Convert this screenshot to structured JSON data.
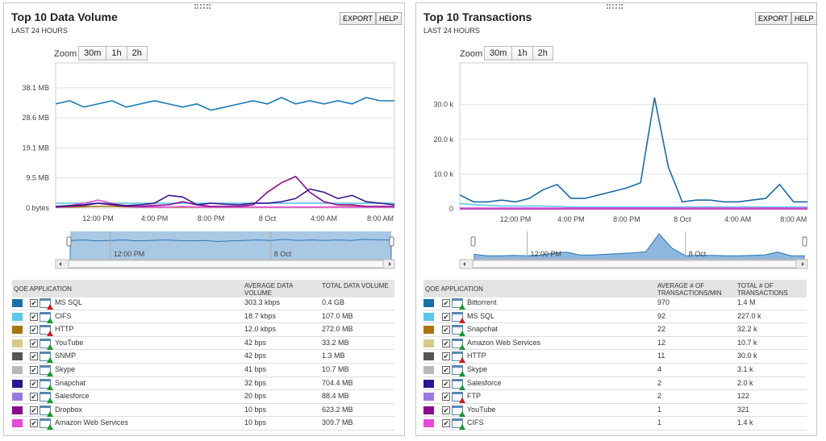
{
  "panels": [
    {
      "title": "Top 10 Data Volume",
      "subtitle": "LAST 24 HOURS",
      "export_label": "EXPORT",
      "help_label": "HELP",
      "zoom": {
        "label": "Zoom",
        "options": [
          "30m",
          "1h",
          "2h"
        ]
      },
      "table": {
        "headers": [
          "QOE APPLICATION",
          "AVERAGE DATA VOLUME",
          "TOTAL DATA VOLUME"
        ],
        "rows": [
          {
            "name": "MS SQL",
            "color": "#1a6fa8",
            "alert": true,
            "avg": "303.3 kbps",
            "total": "0.4 GB"
          },
          {
            "name": "CIFS",
            "color": "#5bc8e8",
            "alert": false,
            "avg": "18.7 kbps",
            "total": "107.0 MB"
          },
          {
            "name": "HTTP",
            "color": "#a8760e",
            "alert": true,
            "avg": "12.0 kbps",
            "total": "272.0 MB"
          },
          {
            "name": "YouTube",
            "color": "#d8c88a",
            "alert": false,
            "avg": "42 bps",
            "total": "33.2 MB"
          },
          {
            "name": "SNMP",
            "color": "#555555",
            "alert": false,
            "avg": "42 bps",
            "total": "1.3 MB"
          },
          {
            "name": "Skype",
            "color": "#b8b8b8",
            "alert": false,
            "avg": "41 bps",
            "total": "10.7 MB"
          },
          {
            "name": "Snapchat",
            "color": "#2e1490",
            "alert": false,
            "avg": "32 bps",
            "total": "704.4 MB"
          },
          {
            "name": "Salesforce",
            "color": "#9a78e0",
            "alert": false,
            "avg": "20 bps",
            "total": "88.4 MB"
          },
          {
            "name": "Dropbox",
            "color": "#8c0a8c",
            "alert": false,
            "avg": "10 bps",
            "total": "623.2 MB"
          },
          {
            "name": "Amazon Web Services",
            "color": "#e64ad8",
            "alert": false,
            "avg": "10 bps",
            "total": "309.7 MB"
          }
        ]
      }
    },
    {
      "title": "Top 10 Transactions",
      "subtitle": "LAST 24 HOURS",
      "export_label": "EXPORT",
      "help_label": "HELP",
      "zoom": {
        "label": "Zoom",
        "options": [
          "30m",
          "1h",
          "2h"
        ]
      },
      "table": {
        "headers": [
          "QOE APPLICATION",
          "AVERAGE # OF TRANSACTIONS/MIN",
          "TOTAL # OF TRANSACTIONS"
        ],
        "rows": [
          {
            "name": "Bittorrent",
            "color": "#1a6fa8",
            "alert": false,
            "avg": "970",
            "total": "1.4 M"
          },
          {
            "name": "MS SQL",
            "color": "#5bc8e8",
            "alert": true,
            "avg": "92",
            "total": "227.0 k"
          },
          {
            "name": "Snapchat",
            "color": "#a8760e",
            "alert": false,
            "avg": "22",
            "total": "32.2 k"
          },
          {
            "name": "Amazon Web Services",
            "color": "#d8c88a",
            "alert": false,
            "avg": "12",
            "total": "10.7 k"
          },
          {
            "name": "HTTP",
            "color": "#555555",
            "alert": true,
            "avg": "11",
            "total": "30.0 k"
          },
          {
            "name": "Skype",
            "color": "#b8b8b8",
            "alert": false,
            "avg": "4",
            "total": "3.1 k"
          },
          {
            "name": "Salesforce",
            "color": "#2e1490",
            "alert": false,
            "avg": "2",
            "total": "2.0 k"
          },
          {
            "name": "FTP",
            "color": "#9a78e0",
            "alert": true,
            "avg": "2",
            "total": "122"
          },
          {
            "name": "YouTube",
            "color": "#8c0a8c",
            "alert": false,
            "avg": "1",
            "total": "321"
          },
          {
            "name": "CIFS",
            "color": "#e64ad8",
            "alert": false,
            "avg": "1",
            "total": "1.4 k"
          }
        ]
      }
    }
  ],
  "chart_data": [
    {
      "type": "line",
      "title": "",
      "ylabel": "",
      "y_unit": "MB",
      "ylim": [
        0,
        46
      ],
      "y_ticks": [
        {
          "v": 0,
          "label": "0 bytes"
        },
        {
          "v": 9.53,
          "label": "9.5 MB"
        },
        {
          "v": 19.05,
          "label": "19.1 MB"
        },
        {
          "v": 28.58,
          "label": "28.6 MB"
        },
        {
          "v": 38.1,
          "label": "38.1 MB"
        }
      ],
      "x_hours": [
        "09:00",
        "10:00",
        "11:00",
        "12:00",
        "13:00",
        "14:00",
        "15:00",
        "16:00",
        "17:00",
        "18:00",
        "19:00",
        "20:00",
        "21:00",
        "22:00",
        "23:00",
        "00:00",
        "01:00",
        "02:00",
        "03:00",
        "04:00",
        "05:00",
        "06:00",
        "07:00",
        "08:00",
        "09:00"
      ],
      "x_ticks": [
        {
          "i": 3,
          "label": "12:00 PM"
        },
        {
          "i": 7,
          "label": "4:00 PM"
        },
        {
          "i": 11,
          "label": "8:00 PM"
        },
        {
          "i": 15,
          "label": "8 Oct"
        },
        {
          "i": 19,
          "label": "4:00 AM"
        },
        {
          "i": 23,
          "label": "8:00 AM"
        }
      ],
      "navigator_ticks": [
        {
          "i": 3,
          "label": "12:00 PM"
        },
        {
          "i": 15,
          "label": "8 Oct"
        }
      ],
      "grid": true,
      "series": [
        {
          "name": "MS SQL",
          "color": "#1a7ab8",
          "values": [
            33,
            34,
            32,
            33,
            34,
            32,
            33,
            34,
            33,
            32,
            33,
            31,
            32,
            33,
            34,
            33,
            35,
            33,
            34,
            33,
            34,
            33,
            35,
            34,
            34
          ]
        },
        {
          "name": "CIFS",
          "color": "#5bc8e8",
          "values": [
            1.5,
            1.5,
            1.5,
            1.5,
            1.5,
            1.5,
            1.5,
            1.5,
            1.5,
            1.5,
            1.5,
            1.5,
            1.5,
            1.5,
            1.5,
            1.5,
            1.5,
            1.5,
            1.5,
            1.5,
            1.5,
            1.5,
            1.5,
            1.5,
            1.5
          ]
        },
        {
          "name": "HTTP",
          "color": "#a8760e",
          "values": [
            0.3,
            0.3,
            0.4,
            0.5,
            0.5,
            0.4,
            0.3,
            0.3,
            0.3,
            0.3,
            0.3,
            0.3,
            0.3,
            0.3,
            0.3,
            0.3,
            0.3,
            0.3,
            0.3,
            0.3,
            0.4,
            0.5,
            0.4,
            0.3,
            0.3
          ]
        },
        {
          "name": "Amazon Web Services",
          "color": "#e64ad8",
          "values": [
            0.3,
            0.8,
            1.5,
            2.5,
            1.5,
            0.5,
            0.3,
            0.3,
            0.3,
            0.5,
            0.3,
            0.3,
            0.3,
            0.3,
            0.3,
            0.3,
            0.3,
            0.3,
            0.3,
            0.3,
            0.3,
            0.3,
            0.3,
            0.3,
            0.3
          ]
        },
        {
          "name": "Dropbox",
          "color": "#8c0a8c",
          "values": [
            0.3,
            0.5,
            0.8,
            1.5,
            1,
            0.5,
            0.5,
            0.8,
            1,
            2,
            1,
            0.5,
            0.5,
            0.5,
            1,
            5,
            8,
            10,
            5,
            2,
            1,
            1,
            0.5,
            0.5,
            0.5
          ]
        },
        {
          "name": "Snapchat",
          "color": "#3a1a8c",
          "values": [
            0.5,
            0.8,
            1,
            1.5,
            1.2,
            0.8,
            1,
            1.5,
            4,
            3.5,
            1,
            1.5,
            1.2,
            1,
            1.5,
            1.5,
            2,
            3,
            6,
            5,
            3,
            4,
            2,
            1.5,
            1
          ]
        }
      ]
    },
    {
      "type": "line",
      "title": "",
      "ylabel": "",
      "y_unit": "k",
      "ylim": [
        0,
        42
      ],
      "y_ticks": [
        {
          "v": 0,
          "label": "0"
        },
        {
          "v": 10,
          "label": "10.0 k"
        },
        {
          "v": 20,
          "label": "20.0 k"
        },
        {
          "v": 30,
          "label": "30.0 k"
        }
      ],
      "x_hours": [
        "08:00",
        "09:00",
        "10:00",
        "11:00",
        "12:00",
        "13:00",
        "14:00",
        "15:00",
        "16:00",
        "17:00",
        "18:00",
        "19:00",
        "20:00",
        "21:00",
        "22:00",
        "23:00",
        "00:00",
        "01:00",
        "02:00",
        "03:00",
        "04:00",
        "05:00",
        "06:00",
        "07:00",
        "08:00",
        "09:00"
      ],
      "x_ticks": [
        {
          "i": 4,
          "label": "12:00 PM"
        },
        {
          "i": 8,
          "label": "4:00 PM"
        },
        {
          "i": 12,
          "label": "8:00 PM"
        },
        {
          "i": 16,
          "label": "8 Oct"
        },
        {
          "i": 20,
          "label": "4:00 AM"
        },
        {
          "i": 24,
          "label": "8:00 AM"
        }
      ],
      "navigator_ticks": [
        {
          "i": 4,
          "label": "12:00 PM"
        },
        {
          "i": 16,
          "label": "8 Oct"
        }
      ],
      "grid": true,
      "series": [
        {
          "name": "MS SQL",
          "color": "#5bc8e8",
          "values": [
            1.5,
            1.2,
            1,
            0.8,
            0.8,
            0.8,
            0.8,
            0.7,
            0.5,
            0.5,
            0.5,
            0.5,
            0.5,
            0.5,
            0.5,
            0.5,
            0.5,
            0.5,
            0.5,
            0.5,
            0.5,
            0.5,
            0.5,
            0.5,
            0.5,
            0.5
          ]
        },
        {
          "name": "YouTube",
          "color": "#8c0a8c",
          "values": [
            0,
            0,
            0,
            0,
            0,
            0,
            0,
            0,
            0,
            0,
            0,
            0,
            0,
            0,
            0,
            0,
            0,
            0,
            0,
            0,
            0,
            0,
            0,
            0,
            0,
            0
          ]
        },
        {
          "name": "CIFS",
          "color": "#e64ad8",
          "values": [
            0.2,
            0.2,
            0.2,
            0.2,
            0.2,
            0.2,
            0.2,
            0.2,
            0.2,
            0.2,
            0.2,
            0.2,
            0.2,
            0.2,
            0.2,
            0.2,
            0.2,
            0.2,
            0.2,
            0.2,
            0.2,
            0.2,
            0.2,
            0.2,
            0.2,
            0.2
          ]
        },
        {
          "name": "Bittorrent",
          "color": "#1a6aa8",
          "values": [
            4,
            2,
            2,
            2.5,
            2,
            3,
            5.5,
            7,
            3,
            3,
            4,
            5,
            6,
            7.5,
            32,
            12,
            2,
            2.5,
            2.5,
            2,
            2,
            2.5,
            3,
            7,
            2,
            2
          ]
        }
      ]
    }
  ]
}
